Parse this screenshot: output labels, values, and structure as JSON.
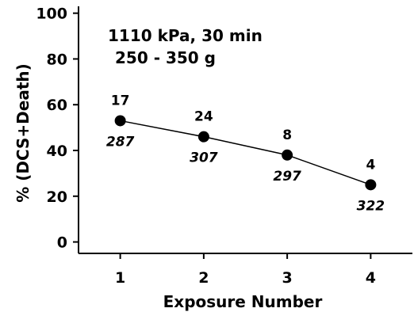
{
  "chart_data": {
    "type": "line",
    "x": [
      1,
      2,
      3,
      4
    ],
    "series": [
      {
        "values": [
          53,
          46,
          38,
          25
        ],
        "labels_above": [
          "17",
          "24",
          "8",
          "4"
        ],
        "labels_below": [
          "287",
          "307",
          "297",
          "322"
        ]
      }
    ],
    "xlabel": "Exposure Number",
    "ylabel": "% (DCS+Death)",
    "xticks": [
      "1",
      "2",
      "3",
      "4"
    ],
    "yticks": [
      "0",
      "20",
      "40",
      "60",
      "80",
      "100"
    ],
    "xlim": [
      0.5,
      4.5
    ],
    "ylim": [
      -5,
      103
    ],
    "grid": false,
    "annotation_lines": [
      "1110 kPa, 30 min",
      "250 - 350 g"
    ],
    "colors": {
      "line": "#000000",
      "marker": "#000000",
      "axis": "#000000"
    }
  }
}
